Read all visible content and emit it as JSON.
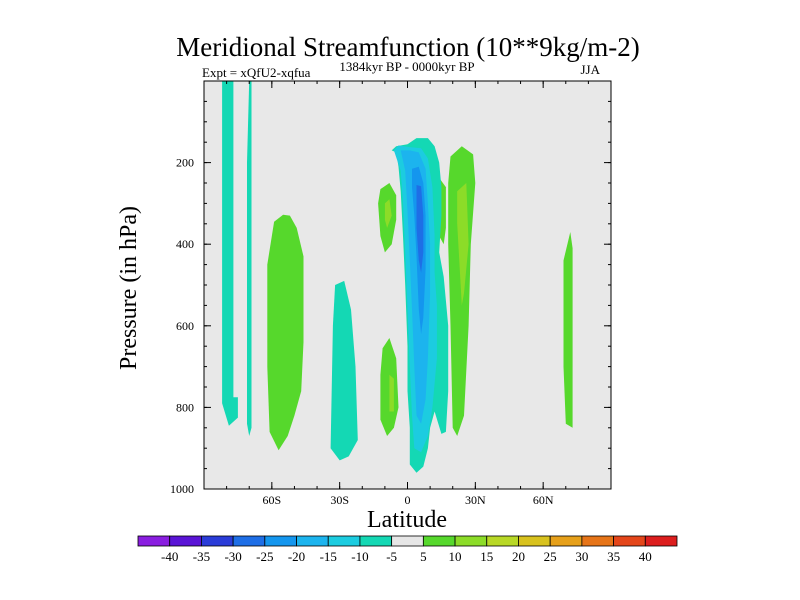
{
  "chart_data": {
    "type": "contour",
    "title": "Meridional Streamfunction (10**9kg/m-2)",
    "left_label": "Expt = xQfU2-xqfua",
    "center_label": "1384kyr BP - 0000kyr BP",
    "right_label": "JJA",
    "xlabel": "Latitude",
    "ylabel": "Pressure (in hPa)",
    "xlim": [
      -90,
      90
    ],
    "ylim": [
      1000,
      0
    ],
    "x_ticks": [
      {
        "value": -60,
        "label": "60S"
      },
      {
        "value": -30,
        "label": "30S"
      },
      {
        "value": 0,
        "label": "0"
      },
      {
        "value": 30,
        "label": "30N"
      },
      {
        "value": 60,
        "label": "60N"
      }
    ],
    "y_ticks": [
      {
        "value": 200,
        "label": "200"
      },
      {
        "value": 400,
        "label": "400"
      },
      {
        "value": 600,
        "label": "600"
      },
      {
        "value": 800,
        "label": "800"
      },
      {
        "value": 1000,
        "label": "1000"
      }
    ],
    "background_color": "#e8e8e8",
    "levels": [
      -40,
      -35,
      -30,
      -25,
      -20,
      -15,
      -10,
      -5,
      5,
      10,
      15,
      20,
      25,
      30,
      35,
      40
    ],
    "level_labels": [
      "-40",
      "-35",
      "-30",
      "-25",
      "-20",
      "-15",
      "-10",
      "-5",
      "5",
      "10",
      "15",
      "20",
      "25",
      "30",
      "35",
      "40"
    ],
    "colorbar_colors": [
      "#8a1ee0",
      "#5a14d6",
      "#2a3cd8",
      "#1e6ee6",
      "#1496ee",
      "#1cb4ee",
      "#1ccce0",
      "#14d8b4",
      "#e6e6e6",
      "#56d82c",
      "#8cdc28",
      "#b8d826",
      "#d8c21e",
      "#e6a01a",
      "#e67418",
      "#e4461a",
      "#dc1e1e"
    ],
    "regions": [
      {
        "level": "-5",
        "color": "#14d8b4",
        "points": [
          [
            -82,
            0
          ],
          [
            -77,
            0
          ],
          [
            -77,
            775
          ],
          [
            -75,
            775
          ],
          [
            -75,
            825
          ],
          [
            -79,
            845
          ],
          [
            -82,
            790
          ]
        ]
      },
      {
        "level": "-5",
        "color": "#14d8b4",
        "points": [
          [
            -70,
            0
          ],
          [
            -69,
            0
          ],
          [
            -69,
            850
          ],
          [
            -70,
            870
          ],
          [
            -71,
            840
          ],
          [
            -71,
            200
          ]
        ]
      },
      {
        "level": "10",
        "color": "#56d82c",
        "points": [
          [
            -59,
            345
          ],
          [
            -55,
            328
          ],
          [
            -52,
            330
          ],
          [
            -49,
            360
          ],
          [
            -46,
            430
          ],
          [
            -46,
            640
          ],
          [
            -47,
            760
          ],
          [
            -50,
            820
          ],
          [
            -53,
            870
          ],
          [
            -57,
            905
          ],
          [
            -61,
            860
          ],
          [
            -62,
            700
          ],
          [
            -62,
            450
          ]
        ]
      },
      {
        "level": "-5",
        "color": "#14d8b4",
        "points": [
          [
            -32,
            500
          ],
          [
            -28,
            490
          ],
          [
            -25,
            560
          ],
          [
            -23,
            700
          ],
          [
            -22,
            880
          ],
          [
            -26,
            920
          ],
          [
            -30,
            930
          ],
          [
            -34,
            900
          ],
          [
            -33,
            600
          ]
        ]
      },
      {
        "level": "10",
        "color": "#56d82c",
        "points": [
          [
            -12,
            265
          ],
          [
            -8,
            250
          ],
          [
            -5,
            280
          ],
          [
            -5,
            340
          ],
          [
            -7,
            400
          ],
          [
            -10,
            420
          ],
          [
            -12,
            380
          ],
          [
            -13,
            300
          ]
        ]
      },
      {
        "level": "15",
        "color": "#8cdc28",
        "points": [
          [
            -10,
            300
          ],
          [
            -8,
            290
          ],
          [
            -7,
            330
          ],
          [
            -9,
            360
          ],
          [
            -10,
            340
          ]
        ]
      },
      {
        "level": "10",
        "color": "#56d82c",
        "points": [
          [
            -11,
            655
          ],
          [
            -8,
            630
          ],
          [
            -5,
            680
          ],
          [
            -4,
            800
          ],
          [
            -6,
            850
          ],
          [
            -9,
            870
          ],
          [
            -12,
            830
          ],
          [
            -12,
            720
          ]
        ]
      },
      {
        "level": "15",
        "color": "#8cdc28",
        "points": [
          [
            -8,
            720
          ],
          [
            -6,
            730
          ],
          [
            -6,
            810
          ],
          [
            -8,
            810
          ]
        ]
      },
      {
        "level": "10",
        "color": "#56d82c",
        "points": [
          [
            19,
            185
          ],
          [
            24,
            160
          ],
          [
            29,
            180
          ],
          [
            30,
            250
          ],
          [
            28,
            400
          ],
          [
            27,
            600
          ],
          [
            25,
            820
          ],
          [
            22,
            870
          ],
          [
            20,
            850
          ],
          [
            19,
            600
          ],
          [
            18,
            400
          ],
          [
            18,
            250
          ]
        ]
      },
      {
        "level": "15",
        "color": "#8cdc28",
        "points": [
          [
            22,
            270
          ],
          [
            26,
            250
          ],
          [
            27,
            400
          ],
          [
            25,
            520
          ],
          [
            24,
            550
          ],
          [
            23,
            450
          ],
          [
            22,
            350
          ]
        ]
      },
      {
        "level": "5",
        "color": "#56d82c",
        "points": [
          [
            11,
            240
          ],
          [
            13,
            230
          ],
          [
            17,
            260
          ],
          [
            17,
            360
          ],
          [
            16,
            400
          ],
          [
            13,
            370
          ],
          [
            11,
            300
          ]
        ]
      },
      {
        "level": "10",
        "color": "#56d82c",
        "points": [
          [
            69,
            440
          ],
          [
            72,
            370
          ],
          [
            73,
            410
          ],
          [
            73,
            850
          ],
          [
            70,
            840
          ],
          [
            69,
            700
          ]
        ]
      },
      {
        "level": "-5",
        "color": "#14d8b4",
        "points": [
          [
            -7,
            170
          ],
          [
            -5,
            160
          ],
          [
            0,
            155
          ],
          [
            4,
            140
          ],
          [
            9,
            140
          ],
          [
            12,
            160
          ],
          [
            14,
            200
          ],
          [
            15,
            260
          ],
          [
            15,
            330
          ],
          [
            14,
            420
          ],
          [
            16,
            480
          ],
          [
            18,
            600
          ],
          [
            18,
            760
          ],
          [
            17,
            860
          ],
          [
            15,
            865
          ],
          [
            12,
            810
          ],
          [
            10,
            850
          ],
          [
            9,
            900
          ],
          [
            7,
            945
          ],
          [
            4,
            960
          ],
          [
            1,
            940
          ],
          [
            1,
            850
          ],
          [
            0,
            760
          ],
          [
            0,
            650
          ],
          [
            -1,
            500
          ],
          [
            -2,
            380
          ],
          [
            -3,
            270
          ],
          [
            -4,
            210
          ],
          [
            -5,
            175
          ]
        ]
      },
      {
        "level": "-10",
        "color": "#1ccce0",
        "points": [
          [
            -6,
            170
          ],
          [
            -4,
            158
          ],
          [
            1,
            162
          ],
          [
            6,
            165
          ],
          [
            9,
            190
          ],
          [
            11,
            260
          ],
          [
            12,
            380
          ],
          [
            12,
            470
          ],
          [
            13,
            550
          ],
          [
            13,
            680
          ],
          [
            11,
            800
          ],
          [
            9,
            870
          ],
          [
            6,
            910
          ],
          [
            3,
            900
          ],
          [
            2,
            820
          ],
          [
            1,
            700
          ],
          [
            0,
            560
          ],
          [
            -1,
            420
          ],
          [
            -2,
            300
          ],
          [
            -3,
            220
          ]
        ]
      },
      {
        "level": "-15",
        "color": "#1cb4ee",
        "points": [
          [
            -3,
            170
          ],
          [
            1,
            170
          ],
          [
            5,
            175
          ],
          [
            8,
            215
          ],
          [
            9,
            300
          ],
          [
            10,
            400
          ],
          [
            10,
            520
          ],
          [
            9,
            680
          ],
          [
            8,
            780
          ],
          [
            6,
            840
          ],
          [
            4,
            820
          ],
          [
            3,
            700
          ],
          [
            2,
            560
          ],
          [
            1,
            440
          ],
          [
            0,
            320
          ],
          [
            -1,
            220
          ]
        ]
      },
      {
        "level": "-20",
        "color": "#1496ee",
        "points": [
          [
            2,
            215
          ],
          [
            5,
            210
          ],
          [
            7,
            250
          ],
          [
            8,
            330
          ],
          [
            8,
            460
          ],
          [
            7,
            580
          ],
          [
            6,
            620
          ],
          [
            5,
            560
          ],
          [
            4,
            430
          ],
          [
            3,
            330
          ],
          [
            2,
            260
          ]
        ]
      },
      {
        "level": "-25",
        "color": "#1e6ee6",
        "points": [
          [
            4,
            255
          ],
          [
            6,
            258
          ],
          [
            7,
            330
          ],
          [
            7,
            420
          ],
          [
            6,
            470
          ],
          [
            5,
            440
          ],
          [
            4,
            360
          ],
          [
            4,
            300
          ]
        ]
      }
    ]
  }
}
